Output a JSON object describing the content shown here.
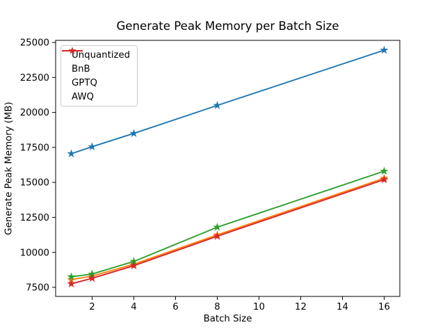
{
  "chart_data": {
    "type": "line",
    "title": "Generate Peak Memory per Batch Size",
    "xlabel": "Batch Size",
    "ylabel": "Generate Peak Memory (MB)",
    "x": [
      1,
      2,
      4,
      8,
      16
    ],
    "series": [
      {
        "name": "Unquantized",
        "color": "#1f77b4",
        "marker": "star",
        "values": [
          17050,
          17550,
          18500,
          20500,
          24450
        ]
      },
      {
        "name": "BnB",
        "color": "#ff7f0e",
        "marker": "star",
        "values": [
          8050,
          8300,
          9150,
          11250,
          15300
        ]
      },
      {
        "name": "GPTQ",
        "color": "#2ca02c",
        "marker": "star",
        "values": [
          8250,
          8450,
          9350,
          11800,
          15800
        ]
      },
      {
        "name": "AWQ",
        "color": "#d62728",
        "marker": "star",
        "values": [
          7750,
          8150,
          9050,
          11150,
          15200
        ]
      }
    ],
    "xticks": [
      2,
      4,
      6,
      8,
      10,
      12,
      14,
      16
    ],
    "yticks": [
      7500,
      10000,
      12500,
      15000,
      17500,
      20000,
      22500,
      25000
    ],
    "xlim": [
      0.25,
      16.75
    ],
    "ylim": [
      6850,
      25150
    ],
    "grid": false,
    "legend": {
      "position": "upper-left",
      "entries": [
        "Unquantized",
        "BnB",
        "GPTQ",
        "AWQ"
      ]
    },
    "colors": {
      "axes": "#000000",
      "background": "#ffffff",
      "legend_border": "#cccccc"
    }
  }
}
